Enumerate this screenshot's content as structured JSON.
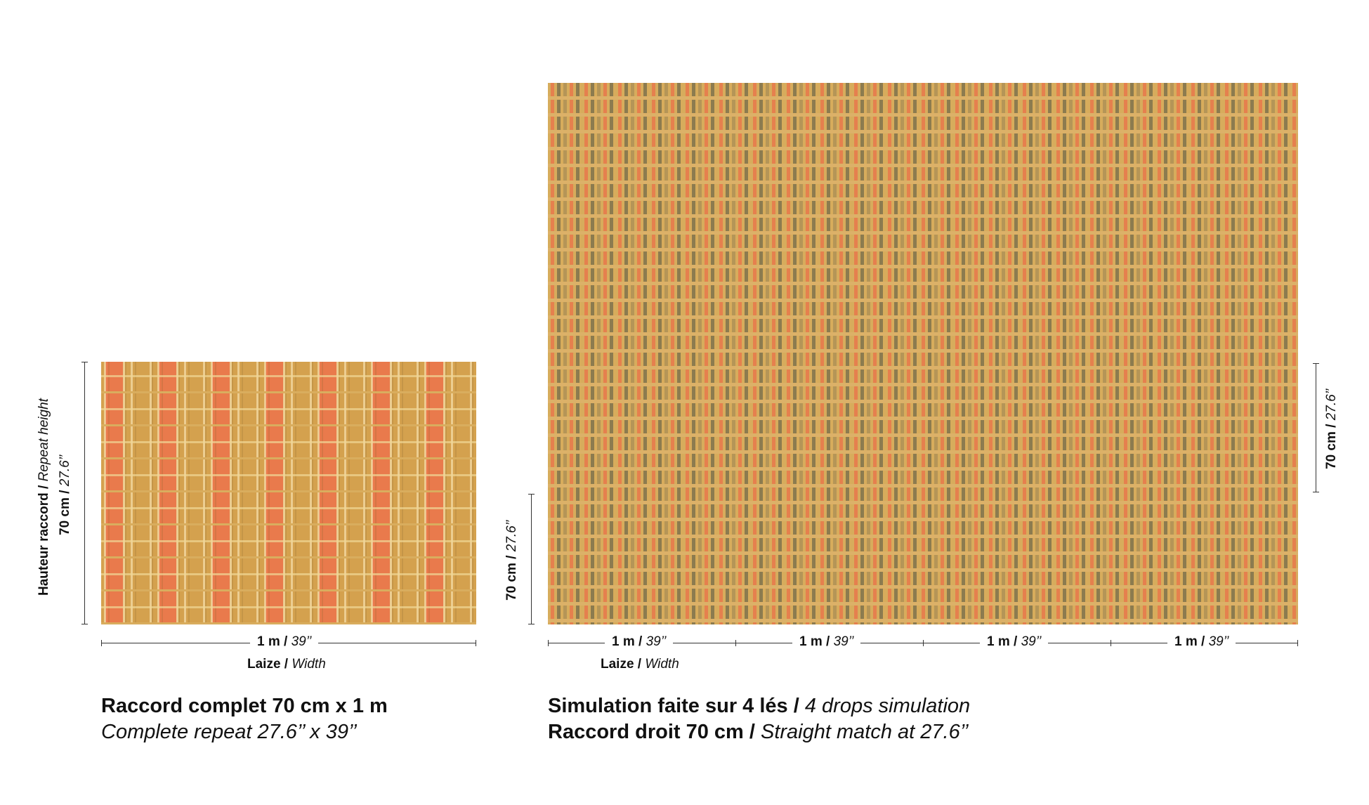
{
  "left": {
    "repeat_height_fr": "Hauteur raccord /",
    "repeat_height_en": "Repeat height",
    "height_cm": "70 cm /",
    "height_in": "27.6’’",
    "width_m": "1 m /",
    "width_in": "39’’",
    "laize": "Laize /",
    "width_en": "Width",
    "caption_fr": "Raccord complet 70 cm x 1 m",
    "caption_en": "Complete repeat 27.6’’ x 39’’"
  },
  "right": {
    "left_height_cm": "70 cm /",
    "left_height_in": "27.6’’",
    "right_height_cm": "70 cm /",
    "right_height_in": "27.6’’",
    "drops": [
      {
        "m": "1 m /",
        "in": "39’’"
      },
      {
        "m": "1 m /",
        "in": "39’’"
      },
      {
        "m": "1 m /",
        "in": "39’’"
      },
      {
        "m": "1 m /",
        "in": "39’’"
      }
    ],
    "laize": "Laize /",
    "width_en": "Width",
    "caption1_fr": "Simulation faite sur 4 lés /",
    "caption1_en": "4 drops simulation",
    "caption2_fr": "Raccord droit 70 cm /",
    "caption2_en": "Straight match at 27.6’’"
  },
  "colors": {
    "ground": "#d7ac5c",
    "orange": "#e97a4c",
    "olive": "#8f7a48"
  }
}
